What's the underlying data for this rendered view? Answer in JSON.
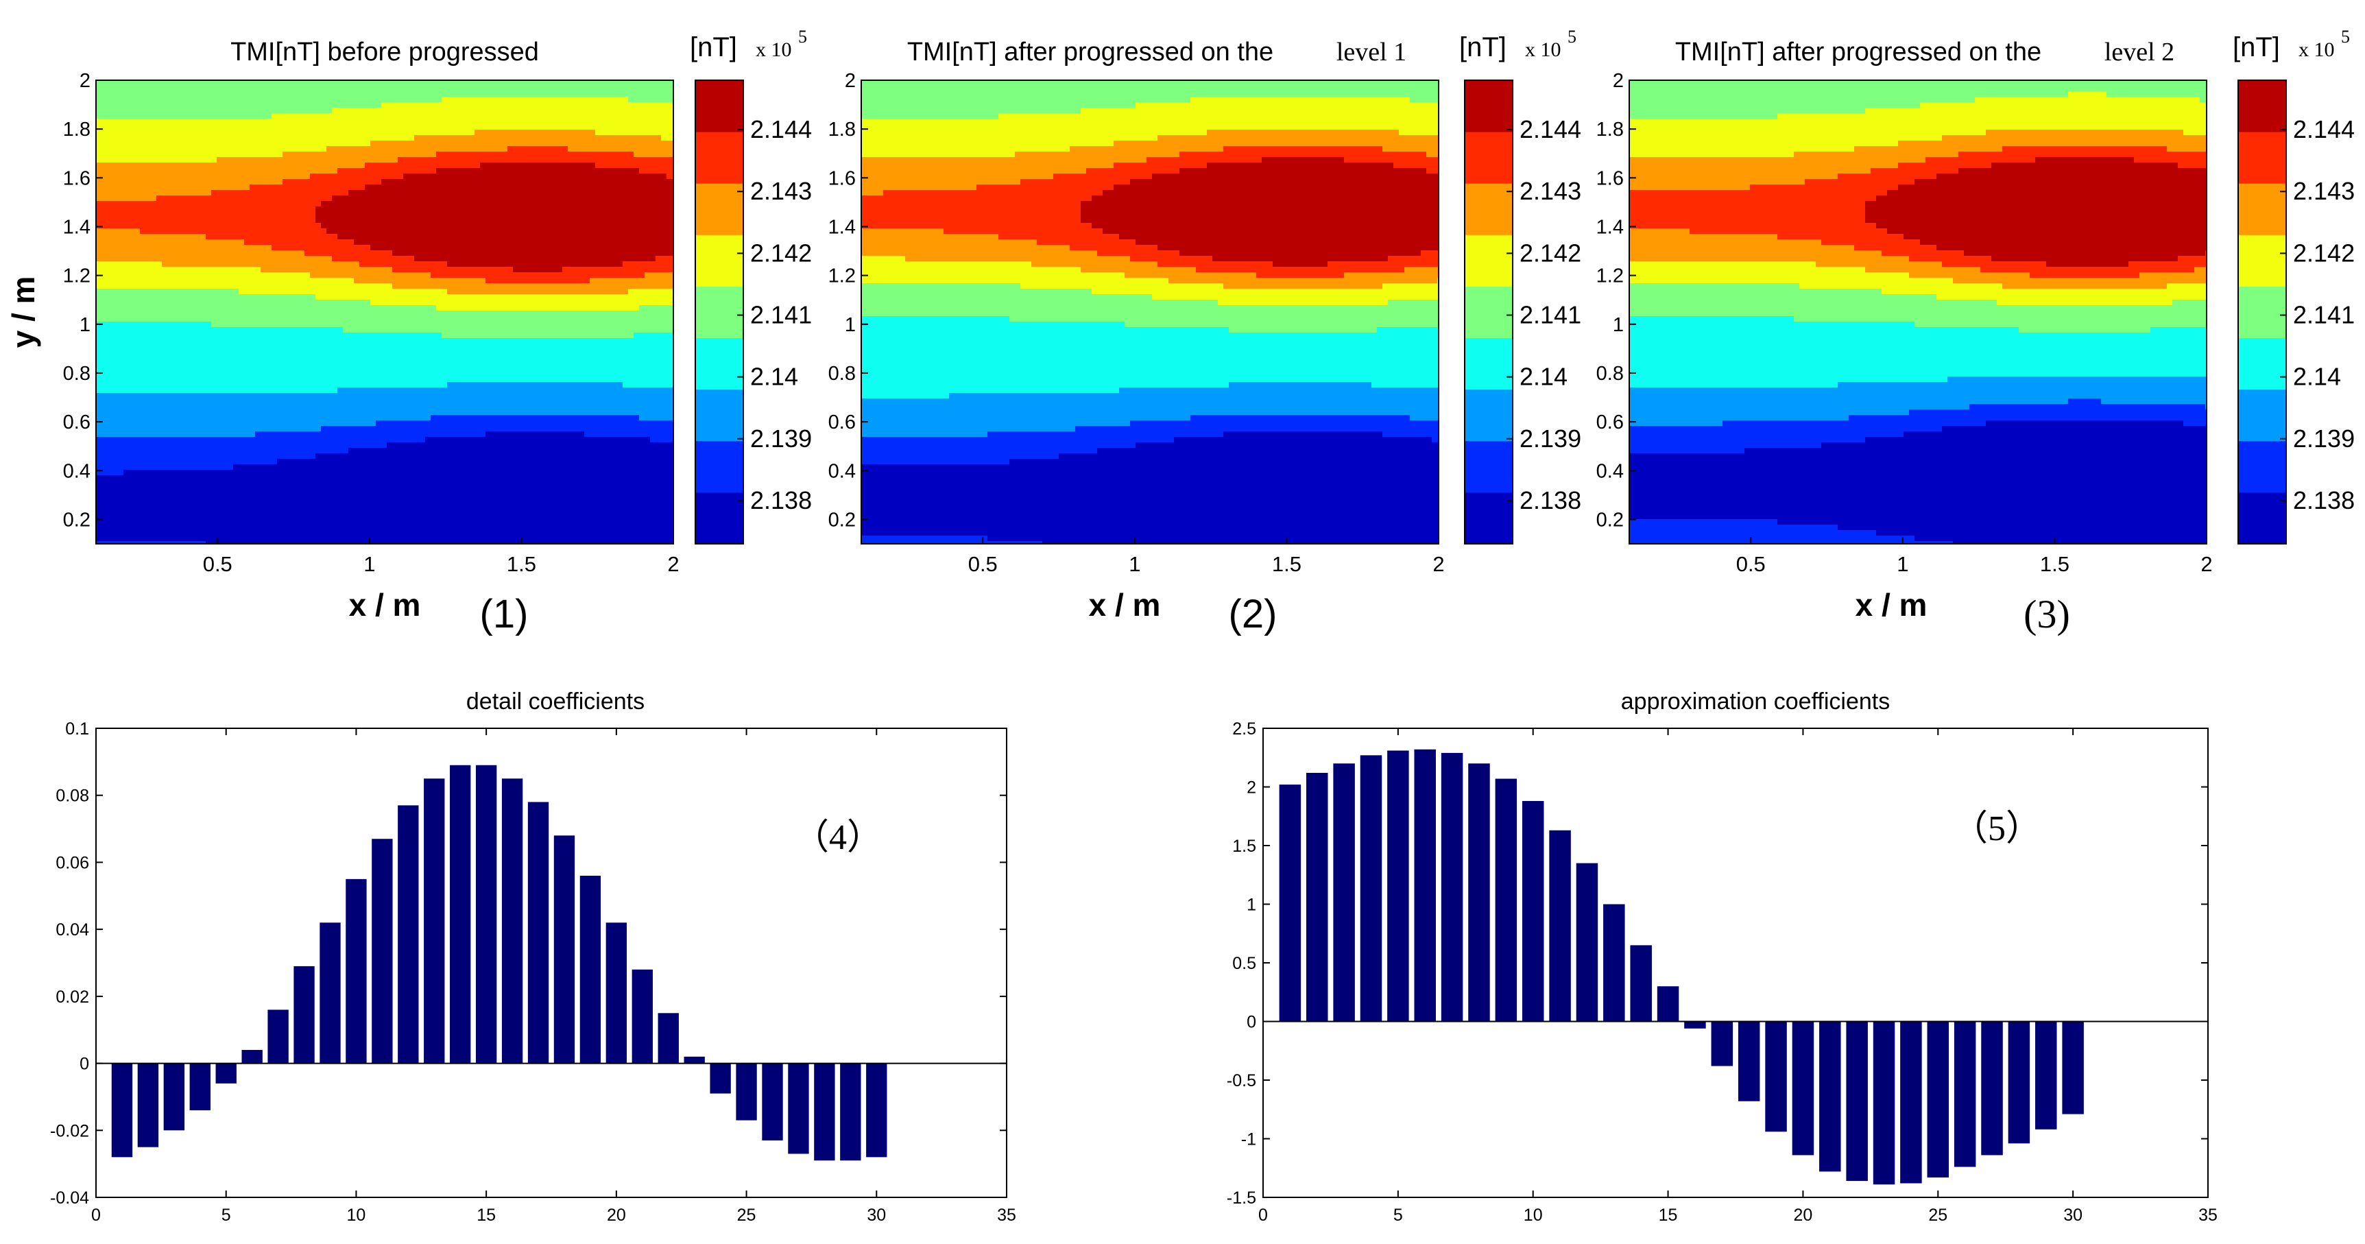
{
  "colors": {
    "bar": "#000075",
    "axis": "#000000",
    "contour_line": "#2a2a2a",
    "jet": [
      "#00008f",
      "#0000ff",
      "#007fff",
      "#00ffff",
      "#7fff7f",
      "#ffff00",
      "#ff7f00",
      "#ff0000",
      "#800000"
    ]
  },
  "chart_data": [
    {
      "id": "panel-1",
      "type": "heatmap",
      "title": "TMI[nT] before progressed",
      "xlabel": "x / m",
      "ylabel": "y / m",
      "panel_label": "(1)",
      "xlim": [
        0.1,
        2.0
      ],
      "ylim": [
        0.1,
        2.0
      ],
      "xticks": [
        0.5,
        1,
        1.5,
        2
      ],
      "yticks": [
        0.2,
        0.4,
        0.6,
        0.8,
        1,
        1.2,
        1.4,
        1.6,
        1.8,
        2
      ],
      "colorbar": {
        "label": "[nT]",
        "multiplier": "x 10",
        "exponent": "5",
        "range": [
          2.1373,
          2.1448
        ],
        "ticks": [
          2.138,
          2.139,
          2.14,
          2.141,
          2.142,
          2.143,
          2.144
        ]
      },
      "field": {
        "ridge_y": 1.43,
        "ridge_strength": 0.0056,
        "ridge_width": 0.3,
        "trough_y": 0.28,
        "trough_strength": 0.0041,
        "trough_width": 0.3,
        "x_center": 1.55,
        "x_spread": 0.62,
        "base": 2.1403
      }
    },
    {
      "id": "panel-2",
      "type": "heatmap",
      "title": "TMI[nT] after progressed on the",
      "title_level": "level  1",
      "xlabel": "x / m",
      "panel_label": "(2)",
      "xlim": [
        0.1,
        2.0
      ],
      "ylim": [
        0.1,
        2.0
      ],
      "xticks": [
        0.5,
        1,
        1.5,
        2
      ],
      "yticks": [
        0.2,
        0.4,
        0.6,
        0.8,
        1,
        1.2,
        1.4,
        1.6,
        1.8,
        2
      ],
      "colorbar": {
        "label": "[nT]",
        "multiplier": "x 10",
        "exponent": "5",
        "range": [
          2.1373,
          2.1448
        ],
        "ticks": [
          2.138,
          2.139,
          2.14,
          2.141,
          2.142,
          2.143,
          2.144
        ]
      },
      "field": {
        "ridge_y": 1.45,
        "ridge_strength": 0.0057,
        "ridge_width": 0.29,
        "trough_y": 0.3,
        "trough_strength": 0.0043,
        "trough_width": 0.28,
        "x_center": 1.55,
        "x_spread": 0.6,
        "base": 2.1403
      }
    },
    {
      "id": "panel-3",
      "type": "heatmap",
      "title": "TMI[nT] after progressed on the",
      "title_level": "level  2",
      "xlabel": "x / m",
      "panel_label": "(3)",
      "xlim": [
        0.1,
        2.0
      ],
      "ylim": [
        0.1,
        2.0
      ],
      "xticks": [
        0.5,
        1,
        1.5,
        2
      ],
      "yticks": [
        0.2,
        0.4,
        0.6,
        0.8,
        1,
        1.2,
        1.4,
        1.6,
        1.8,
        2
      ],
      "colorbar": {
        "label": "[nT]",
        "multiplier": "x 10",
        "exponent": "5",
        "range": [
          2.1373,
          2.1448
        ],
        "ticks": [
          2.138,
          2.139,
          2.14,
          2.141,
          2.142,
          2.143,
          2.144
        ]
      },
      "field": {
        "ridge_y": 1.45,
        "ridge_strength": 0.0058,
        "ridge_width": 0.29,
        "trough_y": 0.36,
        "trough_strength": 0.0045,
        "trough_width": 0.27,
        "x_center": 1.6,
        "x_spread": 0.58,
        "base": 2.1403
      }
    },
    {
      "id": "panel-4",
      "type": "bar",
      "title": "detail coefficients",
      "panel_label": "（4）",
      "xlim": [
        0,
        35
      ],
      "ylim": [
        -0.04,
        0.1
      ],
      "xticks": [
        0,
        5,
        10,
        15,
        20,
        25,
        30,
        35
      ],
      "yticks": [
        -0.04,
        -0.02,
        0,
        0.02,
        0.04,
        0.06,
        0.08,
        0.1
      ],
      "ytick_labels": [
        "-0.04",
        "-0.02",
        "0",
        "0.02",
        "0.04",
        "0.06",
        "0.08",
        "0.1"
      ],
      "x": [
        1,
        2,
        3,
        4,
        5,
        6,
        7,
        8,
        9,
        10,
        11,
        12,
        13,
        14,
        15,
        16,
        17,
        18,
        19,
        20,
        21,
        22,
        23,
        24,
        25,
        26,
        27,
        28,
        29,
        30
      ],
      "values": [
        -0.028,
        -0.025,
        -0.02,
        -0.014,
        -0.006,
        0.004,
        0.016,
        0.029,
        0.042,
        0.055,
        0.067,
        0.077,
        0.085,
        0.089,
        0.089,
        0.085,
        0.078,
        0.068,
        0.056,
        0.042,
        0.028,
        0.015,
        0.002,
        -0.009,
        -0.017,
        -0.023,
        -0.027,
        -0.029,
        -0.029,
        -0.028
      ]
    },
    {
      "id": "panel-5",
      "type": "bar",
      "title": "approximation coefficients",
      "panel_label": "（5）",
      "xlim": [
        0,
        35
      ],
      "ylim": [
        -1.5,
        2.5
      ],
      "xticks": [
        0,
        5,
        10,
        15,
        20,
        25,
        30,
        35
      ],
      "yticks": [
        -1.5,
        -1,
        -0.5,
        0,
        0.5,
        1,
        1.5,
        2,
        2.5
      ],
      "ytick_labels": [
        "-1.5",
        "-1",
        "-0.5",
        "0",
        "0.5",
        "1",
        "1.5",
        "2",
        "2.5"
      ],
      "x": [
        1,
        2,
        3,
        4,
        5,
        6,
        7,
        8,
        9,
        10,
        11,
        12,
        13,
        14,
        15,
        16,
        17,
        18,
        19,
        20,
        21,
        22,
        23,
        24,
        25,
        26,
        27,
        28,
        29,
        30
      ],
      "values": [
        2.02,
        2.12,
        2.2,
        2.27,
        2.31,
        2.32,
        2.29,
        2.2,
        2.07,
        1.88,
        1.63,
        1.35,
        1.0,
        0.65,
        0.3,
        -0.06,
        -0.38,
        -0.68,
        -0.94,
        -1.14,
        -1.28,
        -1.36,
        -1.39,
        -1.38,
        -1.33,
        -1.24,
        -1.14,
        -1.04,
        -0.92,
        -0.79
      ]
    }
  ]
}
